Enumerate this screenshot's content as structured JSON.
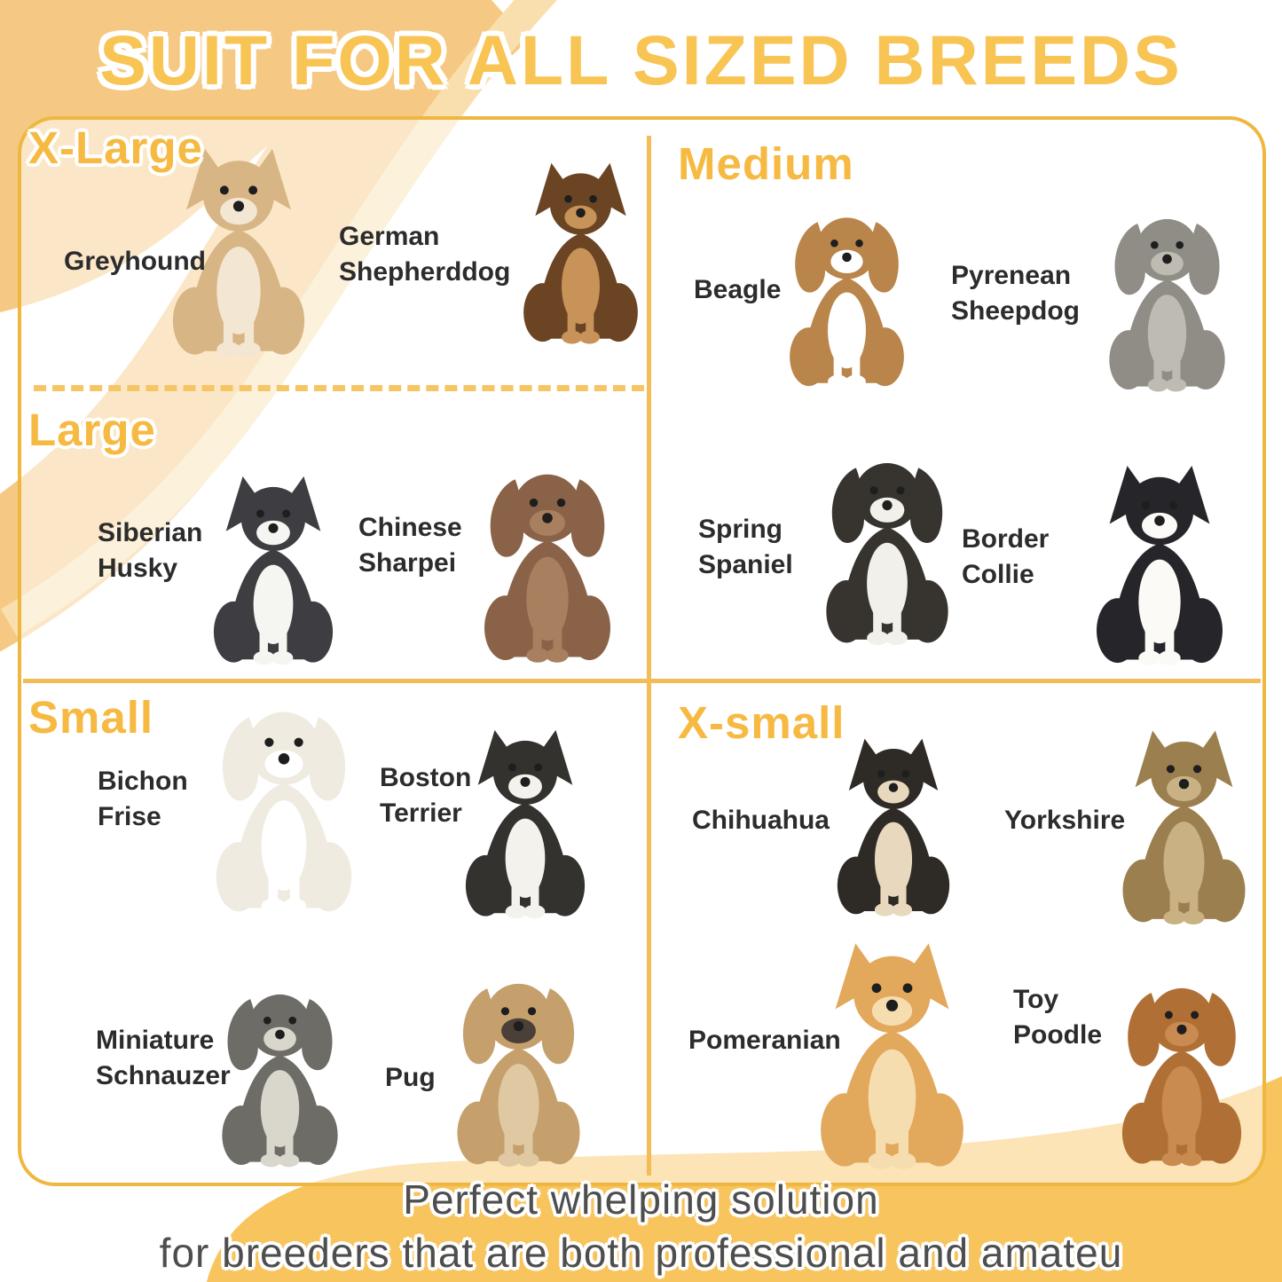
{
  "title": "SUIT FOR ALL SIZED BREEDS",
  "footer": {
    "line1": "Perfect whelping solution",
    "line2": "for breeders that are both professional and amateu"
  },
  "colors": {
    "title_text": "#F8C454",
    "size_label_text": "#F6B942",
    "card_border": "#EFB73F",
    "divider": "#F2BC58",
    "dashed_divider": "#F6C566",
    "swoosh_dark": "#F5C983",
    "swoosh_light": "#F9DFAE",
    "bottom_blob": "#F8C45D",
    "breed_text": "#2C2C2C",
    "footer_text": "#4E4E4E"
  },
  "quadrants": [
    {
      "id": "x-large",
      "label": "X-Large",
      "breeds": [
        {
          "id": "greyhound",
          "name": "Greyhound",
          "icon": "sitting-dog",
          "ears": "up",
          "body_color": "#D8B584",
          "chest_color": "#F3E6D2"
        },
        {
          "id": "german-shepherddog",
          "name": "German Shepherddog",
          "icon": "sitting-dog",
          "ears": "up",
          "body_color": "#6B4423",
          "chest_color": "#C89358"
        }
      ]
    },
    {
      "id": "large",
      "label": "Large",
      "breeds": [
        {
          "id": "siberian-husky",
          "name": "Siberian Husky",
          "icon": "sitting-dog",
          "ears": "up",
          "body_color": "#3E3E42",
          "chest_color": "#F5F5F2"
        },
        {
          "id": "chinese-sharpei",
          "name": "Chinese Sharpei",
          "icon": "sitting-dog",
          "ears": "down",
          "body_color": "#8A6248",
          "chest_color": "#A8805F"
        }
      ]
    },
    {
      "id": "medium",
      "label": "Medium",
      "breeds": [
        {
          "id": "beagle",
          "name": "Beagle",
          "icon": "sitting-dog",
          "ears": "down",
          "body_color": "#B9854A",
          "chest_color": "#FFFFFF"
        },
        {
          "id": "pyrenean-sheepdog",
          "name": "Pyrenean Sheepdog",
          "icon": "sitting-dog",
          "ears": "down",
          "body_color": "#8F8D86",
          "chest_color": "#BDBBB2"
        },
        {
          "id": "spring-spaniel",
          "name": "Spring Spaniel",
          "icon": "sitting-dog",
          "ears": "down",
          "body_color": "#37342F",
          "chest_color": "#F2F0EA"
        },
        {
          "id": "border-collie",
          "name": "Border Collie",
          "icon": "sitting-dog",
          "ears": "up",
          "body_color": "#26262A",
          "chest_color": "#FBFAF6"
        }
      ]
    },
    {
      "id": "small",
      "label": "Small",
      "breeds": [
        {
          "id": "bichon-frise",
          "name": "Bichon Frise",
          "icon": "sitting-dog",
          "ears": "down",
          "body_color": "#EFEBE0",
          "chest_color": "#FFFFFF"
        },
        {
          "id": "boston-terrier",
          "name": "Boston Terrier",
          "icon": "sitting-dog",
          "ears": "up",
          "body_color": "#34322F",
          "chest_color": "#F4F2EC"
        },
        {
          "id": "miniature-schnauzer",
          "name": "Miniature Schnauzer",
          "icon": "sitting-dog",
          "ears": "down",
          "body_color": "#6E6C66",
          "chest_color": "#D9D6CC"
        },
        {
          "id": "pug",
          "name": "Pug",
          "icon": "sitting-dog",
          "ears": "down",
          "body_color": "#C5A06C",
          "chest_color": "#E0C9A2",
          "muzzle_color": "#4A4038"
        }
      ]
    },
    {
      "id": "x-small",
      "label": "X-small",
      "breeds": [
        {
          "id": "chihuahua",
          "name": "Chihuahua",
          "icon": "sitting-dog",
          "ears": "up",
          "body_color": "#2E2A25",
          "chest_color": "#E8D9BE"
        },
        {
          "id": "yorkshire",
          "name": "Yorkshire",
          "icon": "sitting-dog",
          "ears": "up",
          "body_color": "#9C7F4E",
          "chest_color": "#C9B184"
        },
        {
          "id": "pomeranian",
          "name": "Pomeranian",
          "icon": "sitting-dog",
          "ears": "up",
          "body_color": "#E2A85C",
          "chest_color": "#F6DDB0"
        },
        {
          "id": "toy-poodle",
          "name": "Toy Poodle",
          "icon": "sitting-dog",
          "ears": "down",
          "body_color": "#B06F35",
          "chest_color": "#C98B50"
        }
      ]
    }
  ]
}
